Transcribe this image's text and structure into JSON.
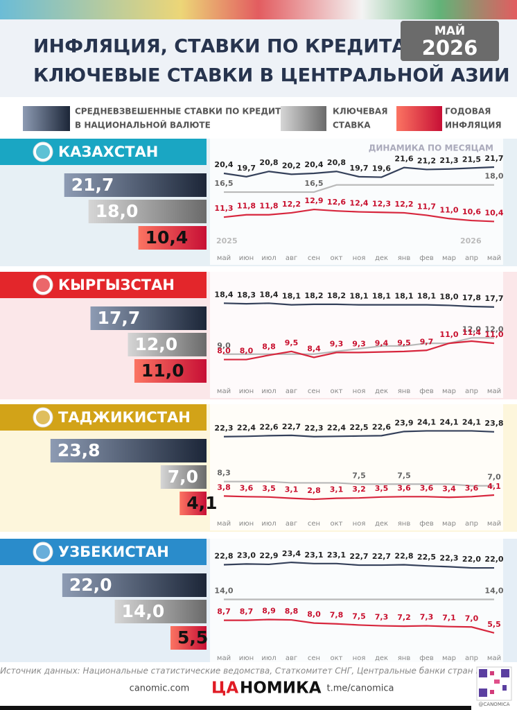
{
  "header": {
    "title_lines": [
      "ИНФЛЯЦИЯ, СТАВКИ ПО КРЕДИТАМ,",
      "КЛЮЧЕВЫЕ СТАВКИ  В ЦЕНТРАЛЬНОЙ АЗИИ"
    ],
    "date_month": "МАЙ",
    "date_year": "2026"
  },
  "legend": [
    {
      "name_lines": [
        "СРЕДНЕВЗВЕШЕННЫЕ СТАВКИ ПО КРЕДИТАМ",
        "В НАЦИОНАЛЬНОЙ ВАЛЮТЕ"
      ],
      "color": "#34405a"
    },
    {
      "name_lines": [
        "КЛЮЧЕВАЯ",
        "СТАВКА"
      ],
      "color": "#b8b8b8"
    },
    {
      "name_lines": [
        "ГОДОВАЯ",
        "ИНФЛЯЦИЯ"
      ],
      "color": "#d7263d"
    }
  ],
  "chart_note": "ДИНАМИКА ПО МЕСЯЦАМ",
  "year_marks": [
    "2025",
    "2026"
  ],
  "chart_data": [
    {
      "type": "line",
      "title": "КАЗАХСТАН",
      "categories": [
        "май",
        "июн",
        "июл",
        "авг",
        "сен",
        "окт",
        "ноя",
        "дек",
        "янв",
        "фев",
        "мар",
        "апр",
        "май"
      ],
      "ylim": [
        6,
        24
      ],
      "series": [
        {
          "values": [
            20.4,
            19.7,
            20.8,
            20.2,
            20.4,
            20.8,
            19.7,
            19.6,
            21.6,
            21.2,
            21.3,
            21.5,
            21.7
          ],
          "value_labels": [
            "20,4",
            "19,7",
            "20,8",
            "20,2",
            "20,4",
            "20,8",
            "19,7",
            "19,6",
            "21,6",
            "21,2",
            "21,3",
            "21,5",
            "21,7"
          ]
        },
        {
          "values": [
            16.5,
            16.5,
            16.5,
            16.5,
            16.5,
            18.0,
            18.0,
            18.0,
            18.0,
            18.0,
            18.0,
            18.0,
            18.0
          ],
          "value_labels": [
            "16,5",
            null,
            null,
            null,
            "16,5",
            null,
            null,
            null,
            null,
            null,
            null,
            null,
            "18,0"
          ]
        },
        {
          "values": [
            11.3,
            11.8,
            11.8,
            12.2,
            12.9,
            12.6,
            12.4,
            12.3,
            12.2,
            11.7,
            11.0,
            10.6,
            10.4
          ],
          "value_labels": [
            "11,3",
            "11,8",
            "11,8",
            "12,2",
            "12,9",
            "12,6",
            "12,4",
            "12,3",
            "12,2",
            "11,7",
            "11,0",
            "10,6",
            "10,4"
          ]
        }
      ],
      "bars": {
        "values": [
          21.7,
          18.0,
          10.4
        ],
        "value_labels": [
          "21,7",
          "18,0",
          "10,4"
        ],
        "xlim": [
          0,
          31.5
        ]
      }
    },
    {
      "type": "line",
      "title": "КЫРГЫЗСТАН",
      "categories": [
        "май",
        "июн",
        "июл",
        "авг",
        "сен",
        "окт",
        "ноя",
        "дек",
        "янв",
        "фев",
        "мар",
        "апр",
        "май"
      ],
      "ylim": [
        5,
        21
      ],
      "series": [
        {
          "values": [
            18.4,
            18.3,
            18.4,
            18.1,
            18.2,
            18.2,
            18.1,
            18.1,
            18.1,
            18.1,
            18.0,
            17.8,
            17.7
          ],
          "value_labels": [
            "18,4",
            "18,3",
            "18,4",
            "18,1",
            "18,2",
            "18,2",
            "18,1",
            "18,1",
            "18,1",
            "18,1",
            "18,0",
            "17,8",
            "17,7"
          ]
        },
        {
          "values": [
            9.0,
            9.0,
            9.0,
            9.0,
            9.0,
            9.5,
            10.0,
            10.5,
            10.5,
            11.0,
            11.0,
            12.0,
            12.0
          ],
          "value_labels": [
            "9,0",
            null,
            null,
            null,
            null,
            null,
            null,
            null,
            null,
            null,
            null,
            "12,0",
            "12,0"
          ]
        },
        {
          "values": [
            8.0,
            8.0,
            8.8,
            9.5,
            8.4,
            9.3,
            9.3,
            9.4,
            9.5,
            9.7,
            11.0,
            11.4,
            11.0
          ],
          "value_labels": [
            "8,0",
            "8,0",
            "8,8",
            "9,5",
            "8,4",
            "9,3",
            "9,3",
            "9,4",
            "9,5",
            "9,7",
            "11,0",
            "11,4",
            "11,0"
          ]
        }
      ],
      "bars": {
        "values": [
          17.7,
          12.0,
          11.0
        ],
        "value_labels": [
          "17,7",
          "12,0",
          "11,0"
        ],
        "xlim": [
          0,
          31.5
        ]
      }
    },
    {
      "type": "line",
      "title": "ТАДЖИКИСТАН",
      "categories": [
        "май",
        "июн",
        "июл",
        "авг",
        "сен",
        "окт",
        "ноя",
        "дек",
        "янв",
        "фев",
        "мар",
        "апр",
        "май"
      ],
      "ylim": [
        0,
        27
      ],
      "series": [
        {
          "values": [
            22.3,
            22.4,
            22.6,
            22.7,
            22.3,
            22.4,
            22.5,
            22.6,
            23.9,
            24.1,
            24.1,
            24.1,
            23.8
          ],
          "value_labels": [
            "22,3",
            "22,4",
            "22,6",
            "22,7",
            "22,3",
            "22,4",
            "22,5",
            "22,6",
            "23,9",
            "24,1",
            "24,1",
            "24,1",
            "23,8"
          ]
        },
        {
          "values": [
            8.3,
            8.3,
            8.3,
            7.9,
            7.9,
            7.9,
            7.5,
            7.5,
            7.5,
            7.5,
            7.5,
            7.0,
            7.0
          ],
          "value_labels": [
            "8,3",
            null,
            null,
            null,
            null,
            null,
            "7,5",
            null,
            "7,5",
            null,
            null,
            null,
            "7,0"
          ]
        },
        {
          "values": [
            3.8,
            3.6,
            3.5,
            3.1,
            2.8,
            3.1,
            3.2,
            3.5,
            3.6,
            3.6,
            3.4,
            3.6,
            4.1
          ],
          "value_labels": [
            "3,8",
            "3,6",
            "3,5",
            "3,1",
            "2,8",
            "3,1",
            "3,2",
            "3,5",
            "3,6",
            "3,6",
            "3,4",
            "3,6",
            "4,1"
          ]
        }
      ],
      "bars": {
        "values": [
          23.8,
          7.0,
          4.1
        ],
        "value_labels": [
          "23,8",
          "7,0",
          "4,1"
        ],
        "xlim": [
          0,
          31.5
        ]
      }
    },
    {
      "type": "line",
      "title": "УЗБЕКИСТАН",
      "categories": [
        "май",
        "июн",
        "июл",
        "авг",
        "сен",
        "окт",
        "ноя",
        "дек",
        "янв",
        "фев",
        "мар",
        "апр",
        "май"
      ],
      "ylim": [
        3,
        25
      ],
      "series": [
        {
          "values": [
            22.8,
            23.0,
            22.9,
            23.4,
            23.1,
            23.1,
            22.7,
            22.7,
            22.8,
            22.5,
            22.3,
            22.0,
            22.0
          ],
          "value_labels": [
            "22,8",
            "23,0",
            "22,9",
            "23,4",
            "23,1",
            "23,1",
            "22,7",
            "22,7",
            "22,8",
            "22,5",
            "22,3",
            "22,0",
            "22,0"
          ]
        },
        {
          "values": [
            14.0,
            14.0,
            14.0,
            14.0,
            14.0,
            14.0,
            14.0,
            14.0,
            14.0,
            14.0,
            14.0,
            14.0,
            14.0
          ],
          "value_labels": [
            "14,0",
            null,
            null,
            null,
            null,
            null,
            null,
            null,
            null,
            null,
            null,
            null,
            "14,0"
          ]
        },
        {
          "values": [
            8.7,
            8.7,
            8.9,
            8.8,
            8.0,
            7.8,
            7.5,
            7.3,
            7.2,
            7.3,
            7.1,
            7.0,
            5.5
          ],
          "value_labels": [
            "8,7",
            "8,7",
            "8,9",
            "8,8",
            "8,0",
            "7,8",
            "7,5",
            "7,3",
            "7,2",
            "7,3",
            "7,1",
            "7,0",
            "5,5"
          ]
        }
      ],
      "bars": {
        "values": [
          22.0,
          14.0,
          5.5
        ],
        "value_labels": [
          "22,0",
          "14,0",
          "5,5"
        ],
        "xlim": [
          0,
          31.5
        ]
      }
    }
  ],
  "footer": {
    "source": "Источник данных: Национальные статистические ведомства, Статкомитет СНГ, Центральные банки  стран ЦА",
    "site": "canomic.com",
    "logo_1": "ЦА",
    "logo_2": "НОМИКА",
    "telegram": "t.me/canomica",
    "handle": "@CANOMICA"
  }
}
